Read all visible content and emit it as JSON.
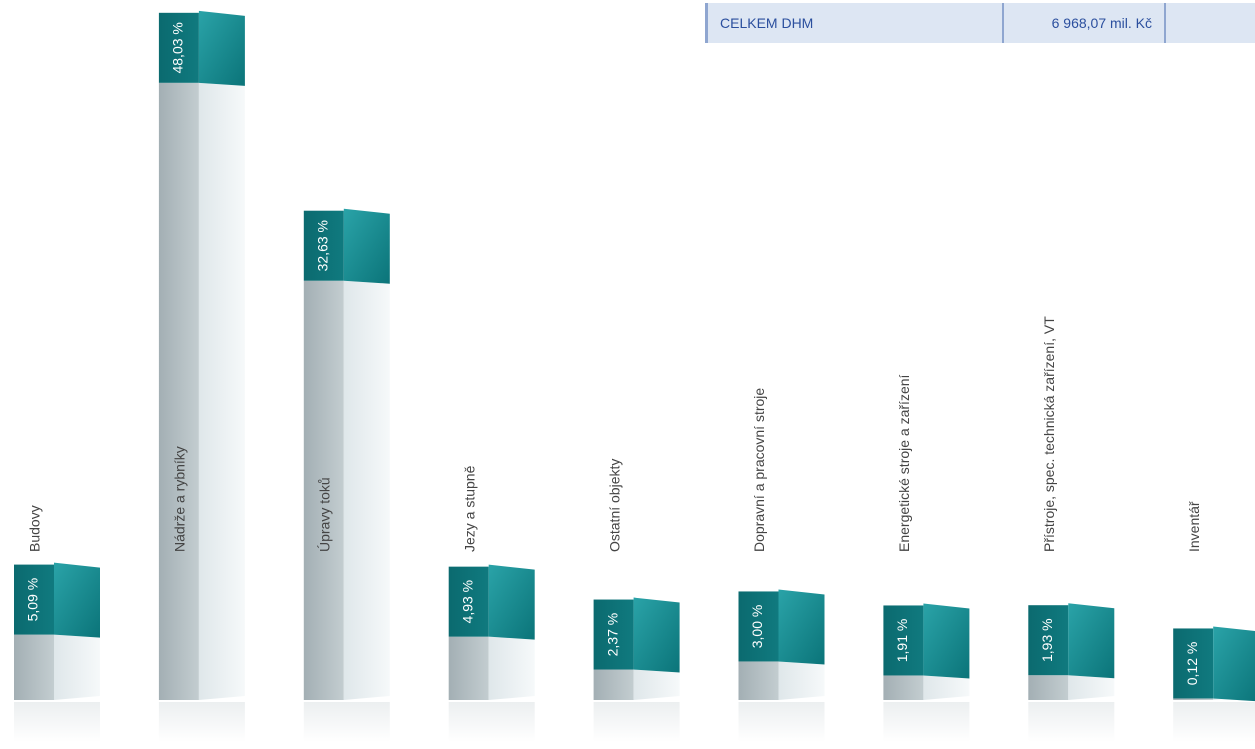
{
  "chart_data": {
    "type": "bar",
    "categories": [
      "Budovy",
      "Nádrže a rybníky",
      "Úpravy toků",
      "Jezy a stupně",
      "Ostatní objekty",
      "Dopravní a pracovní stroje",
      "Energetické stroje a zařízení",
      "Přístroje, spec. technická zařízení, VT",
      "Inventář"
    ],
    "values": [
      5.09,
      48.03,
      32.63,
      4.93,
      2.37,
      3.0,
      1.91,
      1.93,
      0.12
    ],
    "value_labels": [
      "5,09 %",
      "48,03 %",
      "32,63 %",
      "4,93 %",
      "2,37 %",
      "3,00 %",
      "1,91 %",
      "1,93 %",
      "0,12 %"
    ],
    "color": "#0f7a7f"
  },
  "table": {
    "rows": [
      [
        "CELKEM DHM",
        "6 968,07 mil. Kč"
      ]
    ]
  }
}
